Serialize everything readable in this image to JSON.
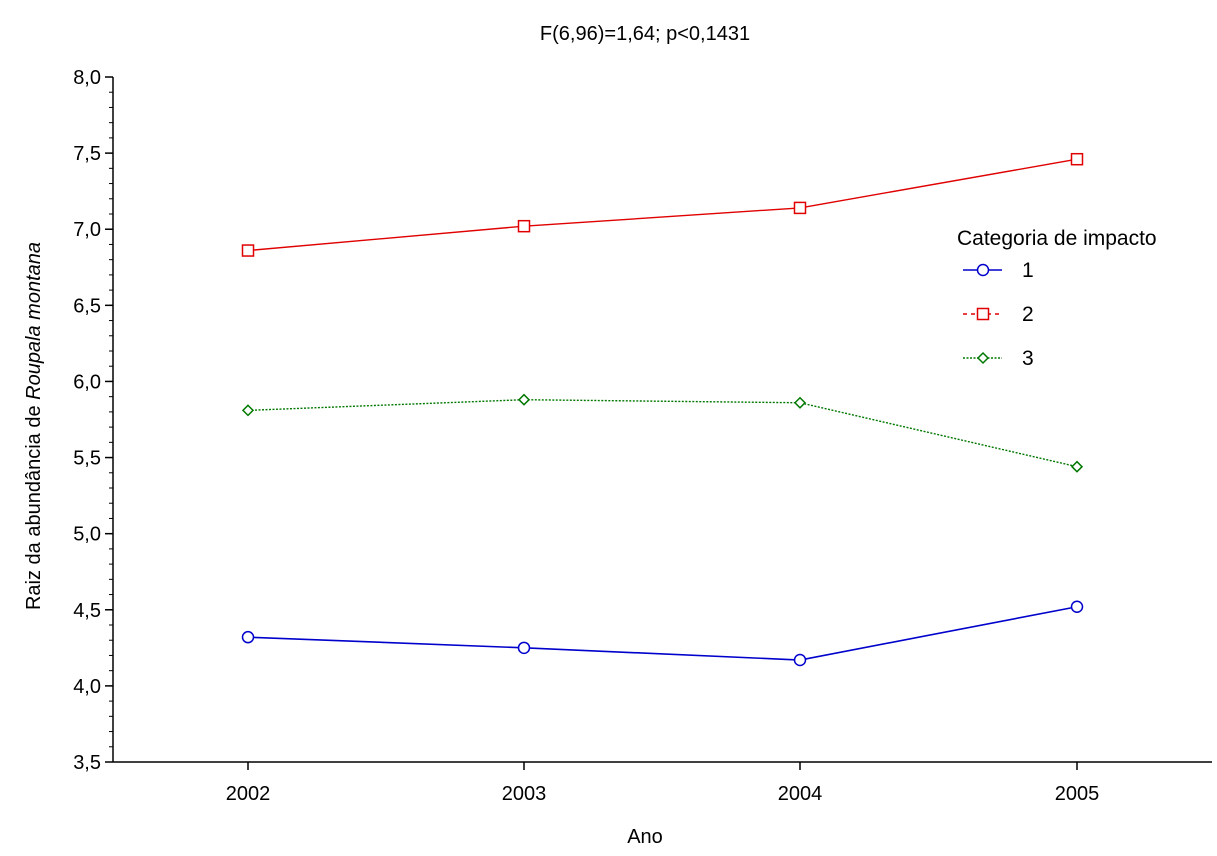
{
  "chart_data": {
    "type": "line",
    "title": "F(6,96)=1,64; p<0,1431",
    "xlabel": "Ano",
    "ylabel_prefix": "Raiz da abundância de ",
    "ylabel_species": "Roupala montana",
    "categories": [
      "2002",
      "2003",
      "2004",
      "2005"
    ],
    "ylim": [
      3.5,
      8.0
    ],
    "y_ticks": [
      "3,5",
      "4,0",
      "4,5",
      "5,0",
      "5,5",
      "6,0",
      "6,5",
      "7,0",
      "7,5",
      "8,0"
    ],
    "grid": false,
    "legend": {
      "title": "Categoria de impacto",
      "placement": "right"
    },
    "series": [
      {
        "name": "1",
        "values": [
          4.32,
          4.25,
          4.17,
          4.52
        ],
        "color": "#0000cc",
        "marker": "circle",
        "dash": "solid"
      },
      {
        "name": "2",
        "values": [
          6.86,
          7.02,
          7.14,
          7.46
        ],
        "color": "#e00000",
        "marker": "square",
        "dash": "dashed"
      },
      {
        "name": "3",
        "values": [
          5.81,
          5.88,
          5.86,
          5.44
        ],
        "color": "#007800",
        "marker": "diamond",
        "dash": "dotted"
      }
    ]
  }
}
